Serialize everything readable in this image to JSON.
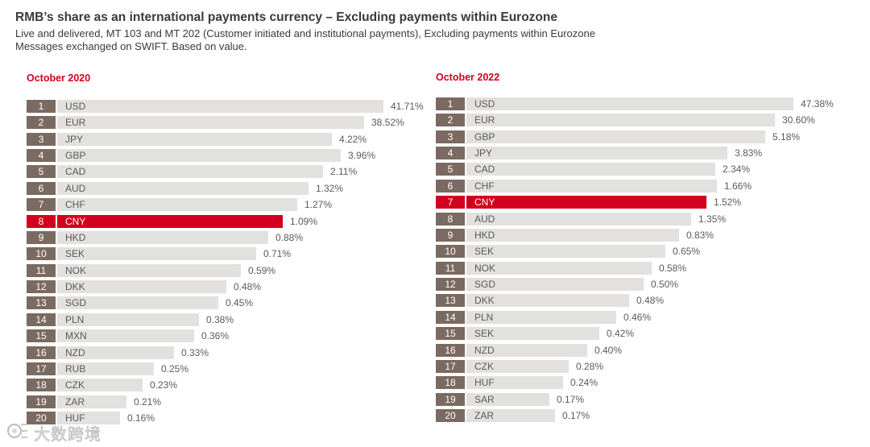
{
  "title": "RMB’s share as an international payments currency – Excluding payments within Eurozone",
  "subtitle_line1": "Live and delivered, MT 103 and MT 202 (Customer initiated and institutional payments), Excluding payments within Eurozone",
  "subtitle_line2": "Messages exchanged on SWIFT. Based on value.",
  "colors": {
    "rank_box": "#7b6a62",
    "bar": "#e3e1df",
    "highlight": "#d2001e",
    "panel_title": "#d2001e"
  },
  "watermark": {
    "text": "大数跨境",
    "icon": "logo-icon"
  },
  "chart_data": [
    {
      "type": "bar",
      "orientation": "horizontal",
      "title": "October 2020",
      "highlight": "CNY",
      "ranks": [
        "1",
        "2",
        "3",
        "4",
        "5",
        "6",
        "7",
        "8",
        "9",
        "10",
        "11",
        "12",
        "13",
        "14",
        "15",
        "16",
        "17",
        "18",
        "19",
        "20"
      ],
      "categories": [
        "USD",
        "EUR",
        "JPY",
        "GBP",
        "CAD",
        "AUD",
        "CHF",
        "CNY",
        "HKD",
        "SEK",
        "NOK",
        "DKK",
        "SGD",
        "PLN",
        "MXN",
        "NZD",
        "RUB",
        "CZK",
        "ZAR",
        "HUF"
      ],
      "values": [
        41.71,
        38.52,
        4.22,
        3.96,
        2.11,
        1.32,
        1.27,
        1.09,
        0.88,
        0.71,
        0.59,
        0.48,
        0.45,
        0.38,
        0.36,
        0.33,
        0.25,
        0.23,
        0.21,
        0.16
      ],
      "labels": [
        "41.71%",
        "38.52%",
        "4.22%",
        "3.96%",
        "2.11%",
        "1.32%",
        "1.27%",
        "1.09%",
        "0.88%",
        "0.71%",
        "0.59%",
        "0.48%",
        "0.45%",
        "0.38%",
        "0.36%",
        "0.33%",
        "0.25%",
        "0.23%",
        "0.21%",
        "0.16%"
      ],
      "scale": "non-linear (visual bar lengths compressed)"
    },
    {
      "type": "bar",
      "orientation": "horizontal",
      "title": "October 2022",
      "highlight": "CNY",
      "ranks": [
        "1",
        "2",
        "3",
        "4",
        "5",
        "6",
        "7",
        "8",
        "9",
        "10",
        "11",
        "12",
        "13",
        "14",
        "15",
        "16",
        "17",
        "18",
        "19",
        "20"
      ],
      "categories": [
        "USD",
        "EUR",
        "GBP",
        "JPY",
        "CAD",
        "CHF",
        "CNY",
        "AUD",
        "HKD",
        "SEK",
        "NOK",
        "SGD",
        "DKK",
        "PLN",
        "SEK",
        "NZD",
        "CZK",
        "HUF",
        "SAR",
        "ZAR"
      ],
      "values": [
        47.38,
        30.6,
        5.18,
        3.83,
        2.34,
        1.66,
        1.52,
        1.35,
        0.83,
        0.65,
        0.58,
        0.5,
        0.48,
        0.46,
        0.42,
        0.4,
        0.28,
        0.24,
        0.17,
        0.17
      ],
      "labels": [
        "47.38%",
        "30.60%",
        "5.18%",
        "3.83%",
        "2.34%",
        "1.66%",
        "1.52%",
        "1.35%",
        "0.83%",
        "0.65%",
        "0.58%",
        "0.50%",
        "0.48%",
        "0.46%",
        "0.42%",
        "0.40%",
        "0.28%",
        "0.24%",
        "0.17%",
        "0.17%"
      ],
      "scale": "non-linear (visual bar lengths compressed)"
    }
  ]
}
